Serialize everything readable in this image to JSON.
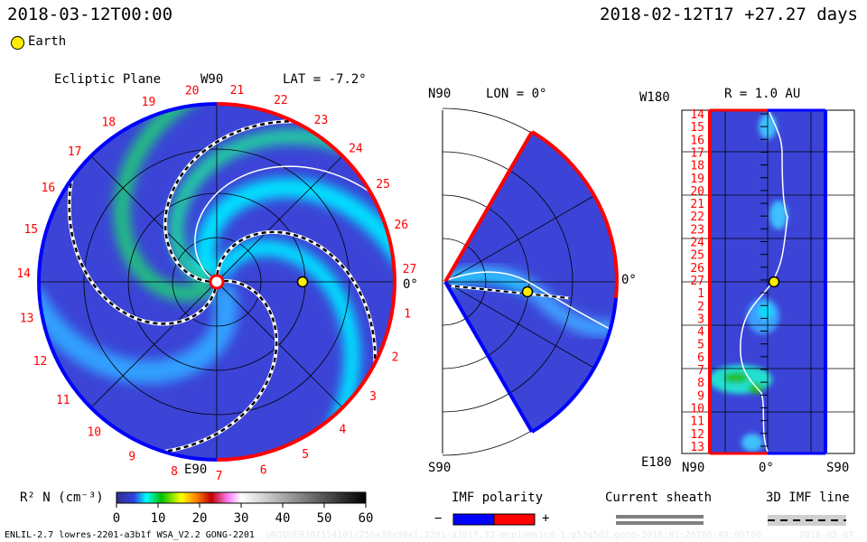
{
  "header": {
    "left_time": "2018-03-12T00:00",
    "right_time": "2018-02-12T17  +27.27 days",
    "legend_earth": "Earth"
  },
  "colors": {
    "earth": "#ffee00",
    "positive_polarity": "#ff0000",
    "negative_polarity": "#0000ff",
    "background_density": "#3b44d6",
    "current_sheath": "#808080",
    "imf_line_bg": "#d0d0d0"
  },
  "chart_data": [
    {
      "type": "heatmap",
      "panel": "ecliptic",
      "title": "Ecliptic Plane",
      "top_label": "W90",
      "bottom_label": "E90",
      "right_label": "0°",
      "lat_label": "LAT = -7.2°",
      "longitude_labels": [
        "1",
        "2",
        "3",
        "4",
        "5",
        "6",
        "7",
        "8",
        "9",
        "10",
        "11",
        "12",
        "13",
        "14",
        "15",
        "16",
        "17",
        "18",
        "19",
        "20",
        "21",
        "22",
        "23",
        "24",
        "25",
        "26",
        "27"
      ],
      "earth_angle_deg": 0,
      "earth_radius_au": 1.0
    },
    {
      "type": "heatmap",
      "panel": "meridional",
      "top_label": "N90",
      "bottom_label": "S90",
      "right_label": "0°",
      "lon_label": "LON = 0°",
      "latitude_range_deg": [
        -60,
        60
      ]
    },
    {
      "type": "heatmap",
      "panel": "r_1au",
      "title": "R = 1.0 AU",
      "top_label": "W180",
      "bottom_label": "E180",
      "x_labels": [
        "N90",
        "0°",
        "S90"
      ],
      "y_labels": [
        "14",
        "15",
        "16",
        "17",
        "18",
        "19",
        "20",
        "21",
        "22",
        "23",
        "24",
        "25",
        "26",
        "27",
        "1",
        "2",
        "3",
        "4",
        "5",
        "6",
        "7",
        "8",
        "9",
        "10",
        "11",
        "12",
        "13"
      ]
    },
    {
      "type": "colorbar",
      "label": "R² N (cm⁻³)",
      "ticks": [
        "0",
        "10",
        "20",
        "30",
        "40",
        "50",
        "60"
      ],
      "range": [
        0,
        60
      ]
    }
  ],
  "legends": {
    "imf_polarity": {
      "title": "IMF polarity",
      "minus": "−",
      "plus": "+"
    },
    "current_sheath": {
      "title": "Current sheath"
    },
    "imf_line": {
      "title": "3D IMF line"
    }
  },
  "footer": {
    "model": "ENLIL-2.7 lowres-2201-a3b1f WSA_V2.2 GONG-2201",
    "faint_run": "UNIQUE0307154101/256x30x90x1.2201-a3b1f.32-mcp1umn1cd-1.g53q5d2.gong-2018:01:26T06:40:00T00",
    "faint_date": "2018-03-07"
  }
}
